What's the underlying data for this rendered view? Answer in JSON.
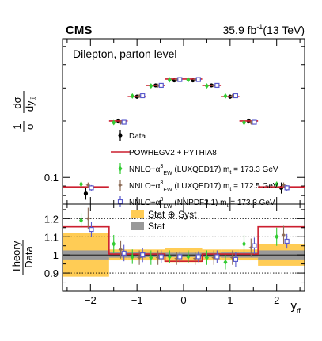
{
  "header": {
    "experiment": "CMS",
    "lumi_value": "35.9 fb",
    "lumi_exp": "-1",
    "energy": "(13 TeV)"
  },
  "upper_ylabel": {
    "one": "1",
    "sigma": "σ",
    "d1": "dσ",
    "d2": "dy",
    "sub": "tt̄"
  },
  "lower_ylabel": {
    "num": "Theory",
    "den": "Data"
  },
  "xlabel": {
    "main": "y",
    "sub": "tt̄"
  },
  "colors": {
    "data": "#000000",
    "powheg": "#cc1f2f",
    "luxqed_1733": "#33cc33",
    "luxqed_1725": "#8b6a55",
    "nnpdf": "#5a5acc",
    "stat_syst_band": "#ffcc55",
    "stat_band": "#999999"
  },
  "chart_data": [
    {
      "name": "upper",
      "type": "scatter",
      "annotation": "Dilepton, parton level",
      "ylog": true,
      "ylim": [
        0.072,
        0.55
      ],
      "xlim": [
        -2.6,
        2.6
      ],
      "yticks": [
        0.1
      ],
      "ytick_labels": [
        "0.1"
      ],
      "bin_edges": [
        -2.6,
        -1.6,
        -1.2,
        -0.8,
        -0.4,
        0.0,
        0.4,
        0.8,
        1.2,
        1.6,
        2.6
      ],
      "series": [
        {
          "name": "Data",
          "key": "data",
          "marker": "dot",
          "values": [
            0.082,
            0.2,
            0.27,
            0.31,
            0.33,
            0.33,
            0.31,
            0.27,
            0.2,
            0.088
          ],
          "errors": [
            0.006,
            0.006,
            0.007,
            0.007,
            0.008,
            0.008,
            0.007,
            0.007,
            0.006,
            0.006
          ]
        },
        {
          "name": "POWHEGV2 + PYTHIA8",
          "key": "powheg",
          "marker": "hist",
          "values": [
            0.089,
            0.2,
            0.27,
            0.31,
            0.335,
            0.335,
            0.31,
            0.27,
            0.2,
            0.089
          ]
        },
        {
          "name": "NNLO+α³EW (LUXQED17) m t = 173.3 GeV",
          "key": "luxqed_1733",
          "marker": "diamond",
          "values": [
            0.092,
            0.196,
            0.272,
            0.308,
            0.332,
            0.332,
            0.308,
            0.272,
            0.196,
            0.092
          ],
          "errors": [
            0.003,
            0.004,
            0.005,
            0.005,
            0.005,
            0.005,
            0.005,
            0.005,
            0.004,
            0.003
          ]
        },
        {
          "name": "NNLO+α³EW (LUXQED17) m t = 172.5 GeV",
          "key": "luxqed_1725",
          "marker": "star",
          "values": [
            0.091,
            0.196,
            0.272,
            0.309,
            0.333,
            0.333,
            0.309,
            0.272,
            0.196,
            0.091
          ],
          "errors": [
            0.003,
            0.004,
            0.005,
            0.005,
            0.005,
            0.005,
            0.005,
            0.005,
            0.004,
            0.003
          ]
        },
        {
          "name": "NNLO+α³EW (NNPDF3.1) m t = 173.3 GeV",
          "key": "nnpdf",
          "marker": "square",
          "values": [
            0.088,
            0.197,
            0.273,
            0.31,
            0.333,
            0.333,
            0.31,
            0.273,
            0.197,
            0.088
          ],
          "errors": [
            0.003,
            0.004,
            0.005,
            0.005,
            0.005,
            0.005,
            0.005,
            0.005,
            0.004,
            0.003
          ]
        }
      ],
      "legend": [
        {
          "key": "data",
          "label": "Data"
        },
        {
          "key": "powheg",
          "label": "POWHEGV2 + PYTHIA8"
        },
        {
          "key": "luxqed_1733",
          "pre": "NNLO+α",
          "sup": "3",
          "sub": "EW",
          "post": " (LUXQED17) m",
          "msub": "t",
          "tail": " = 173.3 GeV"
        },
        {
          "key": "luxqed_1725",
          "pre": "NNLO+α",
          "sup": "3",
          "sub": "EW",
          "post": " (LUXQED17) m",
          "msub": "t",
          "tail": " = 172.5 GeV"
        },
        {
          "key": "nnpdf",
          "pre": "NNLO+α",
          "sup": "3",
          "sub": "EW",
          "post": " (NNPDF3.1) m",
          "msub": "t",
          "tail": " = 173.3 GeV"
        }
      ]
    },
    {
      "name": "lower",
      "type": "ratio",
      "ylim": [
        0.8,
        1.28
      ],
      "xlim": [
        -2.6,
        2.6
      ],
      "yticks": [
        0.9,
        1.0,
        1.1,
        1.2
      ],
      "ytick_labels": [
        "0.9",
        "1",
        "1.1",
        "1.2"
      ],
      "xticks": [
        -2,
        -1,
        0,
        1,
        2
      ],
      "xtick_labels": [
        "−2",
        "−1",
        "0",
        "1",
        "2"
      ],
      "grid_y": [
        0.9,
        1.1,
        1.2
      ],
      "bin_edges": [
        -2.6,
        -1.6,
        -1.2,
        -0.8,
        -0.4,
        0.0,
        0.4,
        0.8,
        1.2,
        1.6,
        2.6
      ],
      "stat_syst": [
        0.12,
        0.03,
        0.03,
        0.03,
        0.04,
        0.04,
        0.03,
        0.03,
        0.03,
        0.06
      ],
      "stat": [
        0.025,
        0.015,
        0.015,
        0.012,
        0.012,
        0.012,
        0.012,
        0.015,
        0.015,
        0.025
      ],
      "powheg_ratio": [
        1.155,
        1.005,
        1.005,
        1.005,
        0.965,
        0.965,
        1.005,
        1.005,
        1.005,
        1.155
      ],
      "points": {
        "luxqed_1733": {
          "values": [
            1.19,
            1.06,
            0.99,
            0.985,
            0.99,
            0.99,
            0.985,
            0.96,
            1.06,
            1.1
          ],
          "errors": [
            0.04,
            0.05,
            0.04,
            0.04,
            0.035,
            0.035,
            0.04,
            0.04,
            0.05,
            0.05
          ]
        },
        "luxqed_1725": {
          "values": [
            1.2,
            1.03,
            0.985,
            0.985,
            0.98,
            0.98,
            0.985,
            0.985,
            1.04,
            1.11
          ],
          "errors": [
            0.06,
            0.05,
            0.04,
            0.04,
            0.035,
            0.035,
            0.04,
            0.04,
            0.05,
            0.05
          ]
        },
        "nnpdf": {
          "values": [
            1.14,
            1.01,
            1.0,
            0.99,
            0.99,
            0.99,
            0.99,
            0.975,
            1.05,
            1.075
          ],
          "errors": [
            0.04,
            0.045,
            0.04,
            0.035,
            0.03,
            0.03,
            0.035,
            0.04,
            0.045,
            0.04
          ]
        }
      },
      "legend": [
        {
          "key": "stat_syst_band",
          "label": "Stat ⊕ Syst"
        },
        {
          "key": "stat_band",
          "label": "Stat"
        }
      ]
    }
  ]
}
